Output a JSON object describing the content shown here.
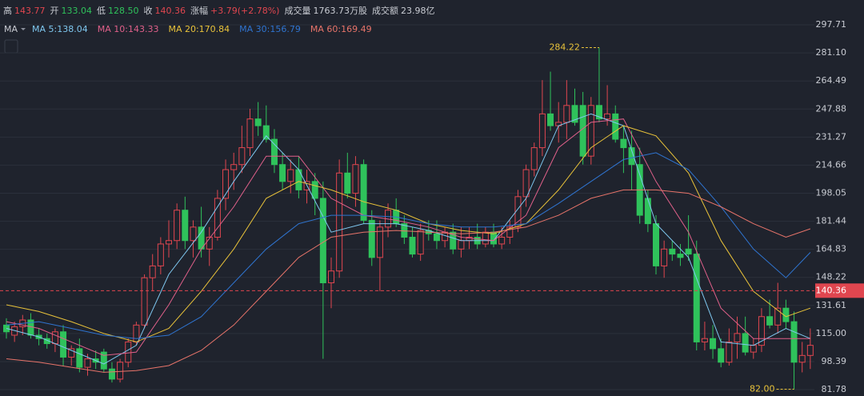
{
  "chart_data": {
    "type": "candlestick",
    "quote": [
      {
        "label": "高",
        "value": "143.77",
        "color": "#e0464f"
      },
      {
        "label": "开",
        "value": "133.04",
        "color": "#2fc25b"
      },
      {
        "label": "低",
        "value": "128.50",
        "color": "#2fc25b"
      },
      {
        "label": "收",
        "value": "140.36",
        "color": "#e0464f"
      },
      {
        "label": "涨幅",
        "value": "+3.79(+2.78%)",
        "color": "#e0464f"
      },
      {
        "label": "成交量",
        "value": "1763.73万股",
        "color": "#c9ccd3"
      },
      {
        "label": "成交额",
        "value": "23.98亿",
        "color": "#c9ccd3"
      }
    ],
    "indicator": "MA",
    "up_color": "#e0464f",
    "down_color": "#2fc25b",
    "ylim": [
      78,
      302
    ],
    "yticks": [
      297.71,
      {
        "value": 281.1,
        "label": "281.10"
      },
      264.49,
      247.88,
      231.27,
      214.66,
      198.05,
      181.44,
      164.83,
      148.22,
      131.61,
      {
        "value": 115,
        "label": "115.00"
      },
      98.39,
      81.78
    ],
    "grid": true,
    "candles": [
      [
        120,
        124,
        112,
        116
      ],
      [
        114,
        122,
        110,
        119
      ],
      [
        119,
        126,
        114,
        123
      ],
      [
        123,
        127,
        112,
        114
      ],
      [
        114,
        118,
        108,
        112
      ],
      [
        112,
        115,
        106,
        109
      ],
      [
        109,
        118,
        104,
        116
      ],
      [
        116,
        120,
        96,
        101
      ],
      [
        101,
        108,
        96,
        106
      ],
      [
        106,
        112,
        92,
        95
      ],
      [
        95,
        103,
        90,
        100
      ],
      [
        100,
        105,
        94,
        98
      ],
      [
        104,
        106,
        92,
        94
      ],
      [
        94,
        98,
        86,
        88
      ],
      [
        88,
        100,
        86,
        98
      ],
      [
        98,
        112,
        95,
        110
      ],
      [
        110,
        122,
        108,
        120
      ],
      [
        120,
        150,
        118,
        148
      ],
      [
        148,
        162,
        140,
        155
      ],
      [
        155,
        172,
        150,
        168
      ],
      [
        168,
        182,
        160,
        170
      ],
      [
        170,
        192,
        165,
        188
      ],
      [
        188,
        196,
        165,
        170
      ],
      [
        170,
        182,
        160,
        178
      ],
      [
        178,
        190,
        160,
        165
      ],
      [
        165,
        178,
        155,
        172
      ],
      [
        172,
        200,
        170,
        195
      ],
      [
        195,
        218,
        188,
        212
      ],
      [
        212,
        222,
        200,
        215
      ],
      [
        215,
        238,
        210,
        225
      ],
      [
        225,
        248,
        220,
        242
      ],
      [
        242,
        252,
        232,
        238
      ],
      [
        238,
        250,
        228,
        230
      ],
      [
        230,
        236,
        210,
        215
      ],
      [
        215,
        222,
        200,
        205
      ],
      [
        205,
        218,
        198,
        212
      ],
      [
        212,
        220,
        195,
        200
      ],
      [
        200,
        212,
        192,
        205
      ],
      [
        205,
        210,
        185,
        195
      ],
      [
        195,
        205,
        100,
        145
      ],
      [
        145,
        160,
        130,
        152
      ],
      [
        152,
        218,
        148,
        210
      ],
      [
        210,
        222,
        195,
        198
      ],
      [
        198,
        220,
        190,
        215
      ],
      [
        215,
        218,
        180,
        182
      ],
      [
        182,
        188,
        155,
        160
      ],
      [
        160,
        182,
        140,
        178
      ],
      [
        178,
        192,
        172,
        188
      ],
      [
        188,
        195,
        178,
        180
      ],
      [
        180,
        185,
        168,
        172
      ],
      [
        172,
        178,
        160,
        162
      ],
      [
        162,
        180,
        158,
        176
      ],
      [
        176,
        182,
        170,
        174
      ],
      [
        174,
        182,
        165,
        170
      ],
      [
        170,
        178,
        166,
        175
      ],
      [
        175,
        180,
        162,
        165
      ],
      [
        165,
        178,
        160,
        170
      ],
      [
        170,
        178,
        165,
        172
      ],
      [
        172,
        180,
        165,
        168
      ],
      [
        168,
        178,
        166,
        175
      ],
      [
        175,
        180,
        166,
        168
      ],
      [
        168,
        178,
        165,
        172
      ],
      [
        172,
        182,
        168,
        178
      ],
      [
        178,
        200,
        175,
        196
      ],
      [
        196,
        215,
        190,
        212
      ],
      [
        212,
        228,
        208,
        225
      ],
      [
        225,
        265,
        220,
        245
      ],
      [
        245,
        270,
        235,
        238
      ],
      [
        238,
        252,
        228,
        240
      ],
      [
        240,
        265,
        230,
        250
      ],
      [
        250,
        260,
        238,
        240
      ],
      [
        250,
        258,
        215,
        220
      ],
      [
        220,
        255,
        215,
        250
      ],
      [
        250,
        284.22,
        240,
        242
      ],
      [
        242,
        262,
        238,
        245
      ],
      [
        245,
        250,
        228,
        230
      ],
      [
        230,
        238,
        210,
        225
      ],
      [
        225,
        235,
        200,
        215
      ],
      [
        215,
        225,
        180,
        185
      ],
      [
        195,
        200,
        175,
        180
      ],
      [
        180,
        185,
        150,
        155
      ],
      [
        155,
        170,
        148,
        165
      ],
      [
        165,
        170,
        158,
        162
      ],
      [
        162,
        168,
        155,
        160
      ],
      [
        165,
        185,
        158,
        162
      ],
      [
        162,
        170,
        105,
        110
      ],
      [
        110,
        122,
        105,
        112
      ],
      [
        112,
        120,
        100,
        106
      ],
      [
        106,
        112,
        95,
        98
      ],
      [
        98,
        118,
        96,
        110
      ],
      [
        110,
        125,
        100,
        115
      ],
      [
        115,
        125,
        102,
        104
      ],
      [
        104,
        112,
        100,
        108
      ],
      [
        108,
        130,
        104,
        125
      ],
      [
        125,
        135,
        118,
        120
      ],
      [
        120,
        145,
        115,
        130
      ],
      [
        130,
        135,
        118,
        122
      ],
      [
        122,
        128,
        82,
        98
      ],
      [
        98,
        110,
        92,
        102
      ],
      [
        102,
        118,
        94,
        108
      ]
    ],
    "series": [
      {
        "name": "MA 5:138.04",
        "color": "#7fc8f0",
        "x": [
          0,
          4,
          8,
          12,
          16,
          20,
          24,
          28,
          32,
          36,
          40,
          44,
          48,
          52,
          56,
          60,
          64,
          68,
          72,
          76,
          80,
          84,
          88,
          92,
          96,
          99
        ],
        "values": [
          118,
          113,
          105,
          97,
          108,
          150,
          175,
          205,
          232,
          212,
          175,
          180,
          180,
          176,
          170,
          170,
          195,
          238,
          245,
          238,
          180,
          160,
          110,
          108,
          118,
          112
        ]
      },
      {
        "name": "MA 10:143.33",
        "color": "#e0608a",
        "x": [
          0,
          4,
          8,
          12,
          16,
          20,
          24,
          28,
          32,
          36,
          40,
          44,
          48,
          52,
          56,
          60,
          64,
          68,
          72,
          76,
          80,
          84,
          88,
          92,
          96,
          99
        ],
        "values": [
          122,
          118,
          110,
          102,
          104,
          132,
          165,
          190,
          220,
          220,
          195,
          185,
          182,
          178,
          172,
          170,
          185,
          225,
          240,
          242,
          205,
          175,
          130,
          112,
          112,
          112
        ]
      },
      {
        "name": "MA 20:170.84",
        "color": "#e8c23a",
        "x": [
          0,
          4,
          8,
          12,
          16,
          20,
          24,
          28,
          32,
          36,
          40,
          44,
          48,
          52,
          56,
          60,
          64,
          68,
          72,
          76,
          80,
          84,
          88,
          92,
          96,
          99
        ],
        "values": [
          132,
          128,
          122,
          115,
          110,
          118,
          140,
          165,
          195,
          205,
          200,
          193,
          188,
          180,
          176,
          174,
          180,
          200,
          225,
          238,
          232,
          210,
          170,
          140,
          125,
          130
        ]
      },
      {
        "name": "MA 30:156.79",
        "color": "#2f74d0",
        "x": [
          0,
          4,
          8,
          12,
          16,
          20,
          24,
          28,
          32,
          36,
          40,
          44,
          48,
          52,
          56,
          60,
          64,
          68,
          72,
          76,
          80,
          84,
          88,
          92,
          96,
          99
        ],
        "values": [
          120,
          122,
          118,
          114,
          112,
          114,
          125,
          145,
          165,
          180,
          185,
          185,
          184,
          180,
          178,
          178,
          180,
          192,
          205,
          218,
          222,
          212,
          190,
          165,
          148,
          163
        ]
      },
      {
        "name": "MA 60:169.49",
        "color": "#e8746a",
        "x": [
          0,
          4,
          8,
          12,
          16,
          20,
          24,
          28,
          32,
          36,
          40,
          44,
          48,
          52,
          56,
          60,
          64,
          68,
          72,
          76,
          80,
          84,
          88,
          92,
          96,
          99
        ],
        "values": [
          100,
          98,
          95,
          92,
          93,
          96,
          105,
          120,
          140,
          160,
          172,
          175,
          176,
          175,
          174,
          175,
          178,
          185,
          195,
          200,
          200,
          198,
          190,
          180,
          172,
          177
        ]
      }
    ],
    "annotations": [
      {
        "value": 284.22,
        "label": "284.22"
      },
      {
        "value": 82,
        "label": "82.00"
      }
    ],
    "last_price": {
      "value": 140.36,
      "label": "140.36"
    }
  }
}
